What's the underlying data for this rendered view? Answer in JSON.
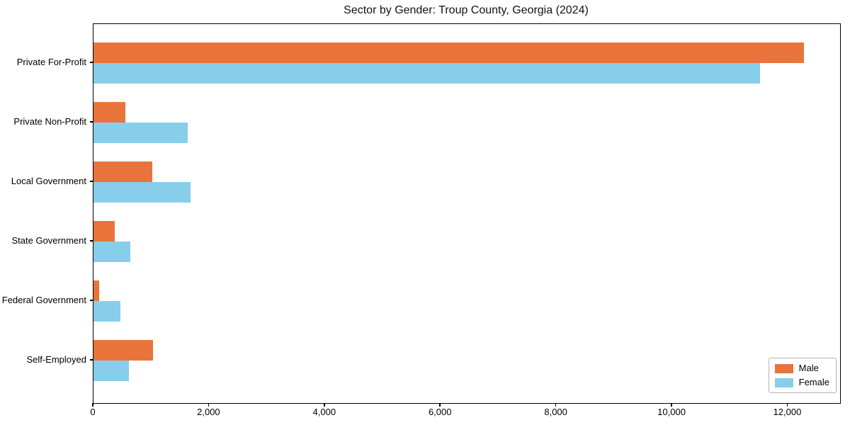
{
  "chart_data": {
    "type": "bar",
    "orientation": "horizontal",
    "title": "Sector by Gender: Troup County, Georgia (2024)",
    "categories": [
      "Private For-Profit",
      "Private Non-Profit",
      "Local Government",
      "State Government",
      "Federal Government",
      "Self-Employed"
    ],
    "series": [
      {
        "name": "Male",
        "color": "#e8743b",
        "values": [
          12270,
          550,
          1010,
          370,
          100,
          1030
        ]
      },
      {
        "name": "Female",
        "color": "#87ceeb",
        "values": [
          11520,
          1630,
          1680,
          640,
          470,
          610
        ]
      }
    ],
    "xlabel": "",
    "ylabel": "",
    "xlim": [
      0,
      12900
    ],
    "x_ticks": [
      {
        "value": 0,
        "label": "0"
      },
      {
        "value": 2000,
        "label": "2,000"
      },
      {
        "value": 4000,
        "label": "4,000"
      },
      {
        "value": 6000,
        "label": "6,000"
      },
      {
        "value": 8000,
        "label": "8,000"
      },
      {
        "value": 10000,
        "label": "10,000"
      },
      {
        "value": 12000,
        "label": "12,000"
      }
    ],
    "grid": "off",
    "legend_position": "lower right",
    "spine_color": "#000000",
    "background_color": "#ffffff"
  }
}
